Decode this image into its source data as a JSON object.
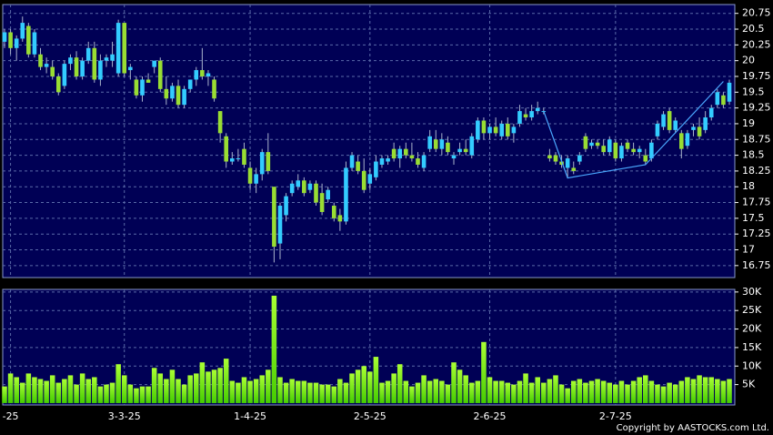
{
  "chart_data": {
    "type": "candlestick",
    "source": "Copyright by AASTOCKS.com Ltd.",
    "up_color": "#33ccff",
    "down_color": "#99dd33",
    "volume_color": "#66ff00",
    "background": "#000055",
    "grid": true,
    "categories": [
      null,
      "-25",
      null,
      null,
      null,
      null,
      null,
      null,
      null,
      null,
      null,
      null,
      null,
      null,
      null,
      null,
      null,
      null,
      null,
      null,
      "3-3-25",
      null,
      null,
      null,
      null,
      null,
      null,
      null,
      null,
      null,
      null,
      null,
      null,
      null,
      null,
      null,
      null,
      null,
      null,
      null,
      null,
      "1-4-25",
      null,
      null,
      null,
      null,
      null,
      null,
      null,
      null,
      null,
      null,
      null,
      null,
      null,
      null,
      null,
      null,
      null,
      null,
      null,
      "2-5-25",
      null,
      null,
      null,
      null,
      null,
      null,
      null,
      null,
      null,
      null,
      null,
      null,
      null,
      null,
      null,
      null,
      null,
      null,
      null,
      "2-6-25",
      null,
      null,
      null,
      null,
      null,
      null,
      null,
      null,
      null,
      null,
      null,
      null,
      null,
      null,
      null,
      null,
      null,
      null,
      null,
      null,
      "2-7-25",
      null,
      null,
      null,
      null,
      null,
      null,
      null,
      null,
      null,
      null,
      null,
      null,
      null,
      null,
      null,
      null,
      null,
      null,
      null
    ],
    "open": [
      20.3,
      20.45,
      20.2,
      20.35,
      20.55,
      20.1,
      20.1,
      19.9,
      19.9,
      19.75,
      19.6,
      19.95,
      20.05,
      19.75,
      20.0,
      20.2,
      19.7,
      20.0,
      20.0,
      19.8,
      20.6,
      19.85,
      19.7,
      19.45,
      19.7,
      19.9,
      20.0,
      19.55,
      19.4,
      19.6,
      19.3,
      19.55,
      19.7,
      19.85,
      19.75,
      19.7,
      19.2,
      18.8,
      18.4,
      18.45,
      18.6,
      18.3,
      18.05,
      18.2,
      18.55,
      18.0,
      17.1,
      17.55,
      17.9,
      18.0,
      18.1,
      17.95,
      18.05,
      17.9,
      17.8,
      17.7,
      17.55,
      17.45,
      18.3,
      18.4,
      18.25,
      18.05,
      18.15,
      18.35,
      18.4,
      18.6,
      18.45,
      18.6,
      18.5,
      18.45,
      18.3,
      18.6,
      18.75,
      18.6,
      18.7,
      18.45,
      18.55,
      18.6,
      18.5,
      18.75,
      19.05,
      18.85,
      18.95,
      18.8,
      19.0,
      18.85,
      19.0,
      19.15,
      19.1,
      19.2,
      19.2,
      18.5,
      18.5,
      18.4,
      18.3,
      18.3,
      18.4,
      18.8,
      18.65,
      18.7,
      18.65,
      18.55,
      18.7,
      18.45,
      18.7,
      18.6,
      18.55,
      18.5,
      18.45,
      18.8,
      18.95,
      19.2,
      18.9,
      18.85,
      18.65,
      18.9,
      18.95,
      18.9,
      19.1,
      19.3,
      19.45,
      19.35
    ],
    "high": [
      20.5,
      20.5,
      20.4,
      20.7,
      20.6,
      20.5,
      20.2,
      20.05,
      20.0,
      19.8,
      20.0,
      20.1,
      20.15,
      20.05,
      20.3,
      20.3,
      20.1,
      20.1,
      20.3,
      20.65,
      20.6,
      19.95,
      19.75,
      19.75,
      19.8,
      20.0,
      20.05,
      19.75,
      19.65,
      19.7,
      19.6,
      19.7,
      19.9,
      20.2,
      19.85,
      19.75,
      19.2,
      18.85,
      18.55,
      18.6,
      18.7,
      18.4,
      18.3,
      18.6,
      18.85,
      18.0,
      17.75,
      17.9,
      18.1,
      18.2,
      18.15,
      18.1,
      18.1,
      18.05,
      18.0,
      17.75,
      17.65,
      18.4,
      18.55,
      18.5,
      18.45,
      18.3,
      18.5,
      18.5,
      18.5,
      18.7,
      18.65,
      18.7,
      18.7,
      18.55,
      18.55,
      18.9,
      18.9,
      18.85,
      18.8,
      18.55,
      18.7,
      18.75,
      18.85,
      19.1,
      19.1,
      19.0,
      19.1,
      19.05,
      19.1,
      19.0,
      19.3,
      19.25,
      19.3,
      19.35,
      19.25,
      18.6,
      18.55,
      18.5,
      18.5,
      18.4,
      18.55,
      18.85,
      18.75,
      18.75,
      18.75,
      18.8,
      18.75,
      18.7,
      18.75,
      18.7,
      18.65,
      18.6,
      18.75,
      19.05,
      19.2,
      19.25,
      19.1,
      18.9,
      18.9,
      19.0,
      19.1,
      19.2,
      19.3,
      19.55,
      19.5,
      19.7
    ],
    "low": [
      20.2,
      20.1,
      20.0,
      20.3,
      20.05,
      20.05,
      19.85,
      19.8,
      19.7,
      19.45,
      19.55,
      19.85,
      19.7,
      19.7,
      19.95,
      19.65,
      19.6,
      19.9,
      19.9,
      19.75,
      19.75,
      19.7,
      19.4,
      19.35,
      19.65,
      19.8,
      19.5,
      19.3,
      19.35,
      19.25,
      19.25,
      19.5,
      19.6,
      19.7,
      19.6,
      19.35,
      18.7,
      18.3,
      18.35,
      18.4,
      18.3,
      17.95,
      17.9,
      18.1,
      18.2,
      16.8,
      16.85,
      17.45,
      17.85,
      17.95,
      17.85,
      17.9,
      17.7,
      17.55,
      17.75,
      17.45,
      17.3,
      17.4,
      18.25,
      18.2,
      17.9,
      17.95,
      18.1,
      18.3,
      18.35,
      18.4,
      18.3,
      18.45,
      18.4,
      18.3,
      18.25,
      18.55,
      18.55,
      18.5,
      18.5,
      18.35,
      18.5,
      18.5,
      18.45,
      18.7,
      18.75,
      18.75,
      18.8,
      18.75,
      18.75,
      18.7,
      18.95,
      19.05,
      19.05,
      19.15,
      19.15,
      18.4,
      18.35,
      18.3,
      18.15,
      18.2,
      18.35,
      18.55,
      18.6,
      18.6,
      18.5,
      18.5,
      18.4,
      18.4,
      18.55,
      18.5,
      18.45,
      18.35,
      18.4,
      18.75,
      18.9,
      18.85,
      18.85,
      18.45,
      18.6,
      18.8,
      18.75,
      18.85,
      19.05,
      19.25,
      19.25,
      19.3
    ],
    "close": [
      20.45,
      20.2,
      20.35,
      20.6,
      20.1,
      20.45,
      19.9,
      19.95,
      19.75,
      19.5,
      19.95,
      20.05,
      19.75,
      20.0,
      20.2,
      19.7,
      20.0,
      20.05,
      20.1,
      20.6,
      19.8,
      19.9,
      19.45,
      19.7,
      19.65,
      20.0,
      19.55,
      19.4,
      19.6,
      19.3,
      19.55,
      19.7,
      19.85,
      19.75,
      19.8,
      19.4,
      18.85,
      18.4,
      18.45,
      18.45,
      18.35,
      18.05,
      18.2,
      18.55,
      18.25,
      17.05,
      17.7,
      17.85,
      18.05,
      18.1,
      17.9,
      18.05,
      17.75,
      17.6,
      17.95,
      17.5,
      17.45,
      18.3,
      18.5,
      18.25,
      17.95,
      18.2,
      18.4,
      18.45,
      18.45,
      18.45,
      18.6,
      18.5,
      18.45,
      18.35,
      18.5,
      18.8,
      18.6,
      18.75,
      18.55,
      18.5,
      18.6,
      18.55,
      18.8,
      19.05,
      18.85,
      18.95,
      18.85,
      19.0,
      18.8,
      18.95,
      19.2,
      19.1,
      19.2,
      19.25,
      19.2,
      18.45,
      18.4,
      18.35,
      18.45,
      18.25,
      18.5,
      18.6,
      18.7,
      18.65,
      18.55,
      18.75,
      18.45,
      18.65,
      18.6,
      18.55,
      18.6,
      18.4,
      18.7,
      19.0,
      19.15,
      18.9,
      19.05,
      18.6,
      18.85,
      18.95,
      18.8,
      19.1,
      19.25,
      19.5,
      19.3,
      19.65
    ],
    "volume": [
      4500,
      8000,
      7000,
      5500,
      8000,
      7000,
      6500,
      6000,
      7500,
      5500,
      6500,
      7500,
      5000,
      8000,
      6500,
      7000,
      4500,
      5000,
      5500,
      10500,
      7500,
      5000,
      4000,
      4500,
      4500,
      9500,
      8000,
      6500,
      9000,
      6500,
      5000,
      7500,
      8000,
      11000,
      8500,
      9000,
      9500,
      12000,
      6000,
      5500,
      7000,
      6000,
      6500,
      7500,
      9000,
      29000,
      7000,
      5500,
      6500,
      6000,
      6000,
      5500,
      5500,
      5000,
      5000,
      4500,
      6500,
      5500,
      8000,
      9000,
      10000,
      8500,
      12500,
      5500,
      6000,
      8000,
      10500,
      6000,
      4500,
      5500,
      7500,
      6000,
      6500,
      6000,
      5000,
      11000,
      9000,
      7500,
      5500,
      6000,
      16500,
      7000,
      6000,
      6000,
      5500,
      5000,
      6000,
      8000,
      5500,
      7000,
      5500,
      6500,
      7500,
      5000,
      4000,
      6000,
      6500,
      5500,
      6000,
      6500,
      6000,
      5500,
      5000,
      6000,
      5000,
      6000,
      7000,
      7500,
      6000,
      5000,
      4500,
      5500,
      5000,
      6000,
      7000,
      6500,
      7500,
      7000,
      7000,
      6500,
      6000,
      6500
    ],
    "trend_line": {
      "color": "#4aa8ff",
      "x": [
        90,
        94,
        107,
        120
      ],
      "y": [
        19.2,
        18.14,
        18.35,
        19.67
      ]
    },
    "ylim": [
      16.56,
      20.89
    ],
    "yticks": [
      16.75,
      17,
      17.25,
      17.5,
      17.75,
      18,
      18.25,
      18.5,
      18.75,
      19,
      19.25,
      19.5,
      19.75,
      20,
      20.25,
      20.5,
      20.75
    ],
    "volume_ylim": [
      -500,
      30700
    ],
    "volume_yticks": [
      {
        "value": 5000,
        "label": "5K"
      },
      {
        "value": 10000,
        "label": "10K"
      },
      {
        "value": 15000,
        "label": "15K"
      },
      {
        "value": 20000,
        "label": "20K"
      },
      {
        "value": 25000,
        "label": "25K"
      },
      {
        "value": 30000,
        "label": "30K"
      }
    ]
  }
}
